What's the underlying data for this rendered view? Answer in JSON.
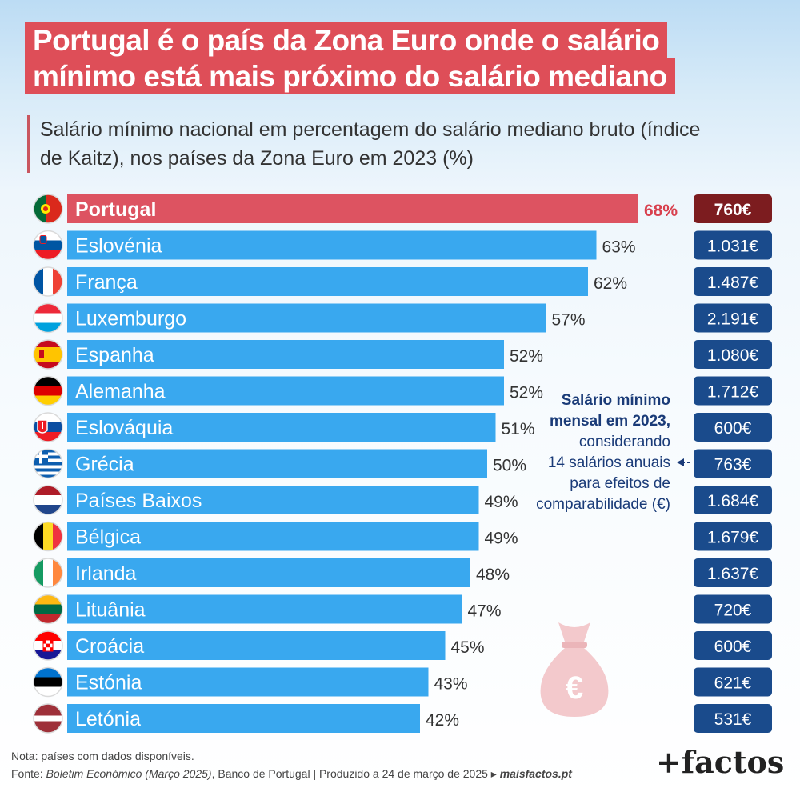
{
  "title_lines": [
    "Portugal é o país da Zona Euro onde o salário",
    "mínimo está mais próximo do salário mediano"
  ],
  "subtitle": "Salário mínimo nacional em percentagem do salário mediano bruto (índice de Kaitz), nos países da Zona Euro em 2023 (%)",
  "colors": {
    "highlight_bar": "#dd5361",
    "bar": "#39a8ef",
    "highlight_box": "#7c1c1f",
    "box": "#1a4b8c",
    "highlight_label": "#d8404e"
  },
  "chart_data": {
    "type": "bar",
    "orientation": "horizontal",
    "categories": [
      "Portugal",
      "Eslovénia",
      "França",
      "Luxemburgo",
      "Espanha",
      "Alemanha",
      "Eslováquia",
      "Grécia",
      "Países Baixos",
      "Bélgica",
      "Irlanda",
      "Lituânia",
      "Croácia",
      "Estónia",
      "Letónia"
    ],
    "values": [
      68,
      63,
      62,
      57,
      52,
      52,
      51,
      50,
      49,
      49,
      48,
      47,
      45,
      43,
      42
    ],
    "value_labels": [
      "68%",
      "63%",
      "62%",
      "57%",
      "52%",
      "52%",
      "51%",
      "50%",
      "49%",
      "49%",
      "48%",
      "47%",
      "45%",
      "43%",
      "42%"
    ],
    "flags": [
      "flag-portugal-icon",
      "flag-slovenia-icon",
      "flag-france-icon",
      "flag-luxembourg-icon",
      "flag-spain-icon",
      "flag-germany-icon",
      "flag-slovakia-icon",
      "flag-greece-icon",
      "flag-netherlands-icon",
      "flag-belgium-icon",
      "flag-ireland-icon",
      "flag-lithuania-icon",
      "flag-croatia-icon",
      "flag-estonia-icon",
      "flag-latvia-icon"
    ],
    "highlight": "Portugal",
    "min_wage_labels": [
      "760€",
      "1.031€",
      "1.487€",
      "2.191€",
      "1.080€",
      "1.712€",
      "600€",
      "763€",
      "1.684€",
      "1.679€",
      "1.637€",
      "720€",
      "600€",
      "621€",
      "531€"
    ],
    "min_wage_values": [
      760,
      1031,
      1487,
      2191,
      1080,
      1712,
      600,
      763,
      1684,
      1679,
      1637,
      720,
      600,
      621,
      531
    ],
    "xlim": [
      0,
      100
    ],
    "title": "",
    "xlabel": "",
    "ylabel": "",
    "grid": false,
    "legend": "none"
  },
  "callout": {
    "bold_line_1": "Salário mínimo",
    "bold_line_2": "mensal em 2023,",
    "lines": [
      "considerando",
      "14 salários anuais",
      "para efeitos de",
      "comparabilidade (€)"
    ],
    "bag_symbol": "€"
  },
  "footer": {
    "note": "Nota: países com dados disponíveis.",
    "source_prefix": "Fonte: ",
    "source_title": "Boletim Económico (Março 2025)",
    "source_rest": ", Banco de Portugal | Produzido a 24 de março de 2025 ▸ ",
    "site": "maisfactos.pt"
  },
  "logo": "+factos"
}
